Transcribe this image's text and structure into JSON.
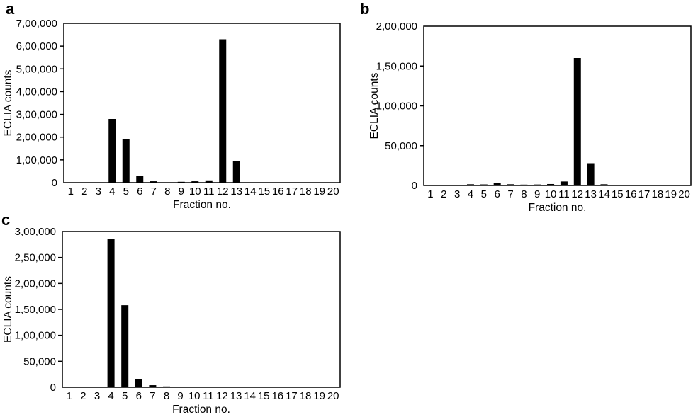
{
  "chart_data": [
    {
      "type": "bar",
      "panel_label": "a",
      "xlabel": "Fraction no.",
      "ylabel": "ECLIA counts",
      "categories": [
        "1",
        "2",
        "3",
        "4",
        "5",
        "6",
        "7",
        "8",
        "9",
        "10",
        "11",
        "12",
        "13",
        "14",
        "15",
        "16",
        "17",
        "18",
        "19",
        "20"
      ],
      "values": [
        0,
        0,
        0,
        280000,
        192000,
        30000,
        6000,
        0,
        3000,
        6000,
        10000,
        630000,
        95000,
        0,
        0,
        0,
        0,
        0,
        0,
        0
      ],
      "ylim": [
        0,
        700000
      ],
      "ytick_values": [
        0,
        100000,
        200000,
        300000,
        400000,
        500000,
        600000,
        700000
      ],
      "ytick_labels": [
        "0",
        "1,00,000",
        "2,00,000",
        "3,00,000",
        "4,00,000",
        "5,00,000",
        "6,00,000",
        "7,00,000"
      ],
      "grid": false,
      "legend_position": "none",
      "bar_color": "#000000"
    },
    {
      "type": "bar",
      "panel_label": "b",
      "xlabel": "Fraction no.",
      "ylabel": "ECLIA counts",
      "categories": [
        "1",
        "2",
        "3",
        "4",
        "5",
        "6",
        "7",
        "8",
        "9",
        "10",
        "11",
        "12",
        "13",
        "14",
        "15",
        "16",
        "17",
        "18",
        "19",
        "20"
      ],
      "values": [
        0,
        0,
        0,
        1500,
        1300,
        2700,
        1500,
        700,
        1200,
        1800,
        5000,
        160000,
        28000,
        1500,
        0,
        0,
        0,
        0,
        0,
        0
      ],
      "ylim": [
        0,
        200000
      ],
      "ytick_values": [
        0,
        50000,
        100000,
        150000,
        200000
      ],
      "ytick_labels": [
        "0",
        "50,000",
        "1,00,000",
        "1,50,000",
        "2,00,000"
      ],
      "grid": false,
      "legend_position": "none",
      "bar_color": "#000000"
    },
    {
      "type": "bar",
      "panel_label": "c",
      "xlabel": "Fraction no.",
      "ylabel": "ECLIA counts",
      "categories": [
        "1",
        "2",
        "3",
        "4",
        "5",
        "6",
        "7",
        "8",
        "9",
        "10",
        "11",
        "12",
        "13",
        "14",
        "15",
        "16",
        "17",
        "18",
        "19",
        "20"
      ],
      "values": [
        0,
        0,
        0,
        285000,
        158000,
        15000,
        4000,
        1000,
        0,
        0,
        0,
        0,
        0,
        0,
        0,
        0,
        0,
        0,
        0,
        0
      ],
      "ylim": [
        0,
        300000
      ],
      "ytick_values": [
        0,
        50000,
        100000,
        150000,
        200000,
        250000,
        300000
      ],
      "ytick_labels": [
        "0",
        "50,000",
        "1,00,000",
        "1,50,000",
        "2,00,000",
        "2,50,000",
        "3,00,000"
      ],
      "grid": false,
      "legend_position": "none",
      "bar_color": "#000000"
    }
  ]
}
